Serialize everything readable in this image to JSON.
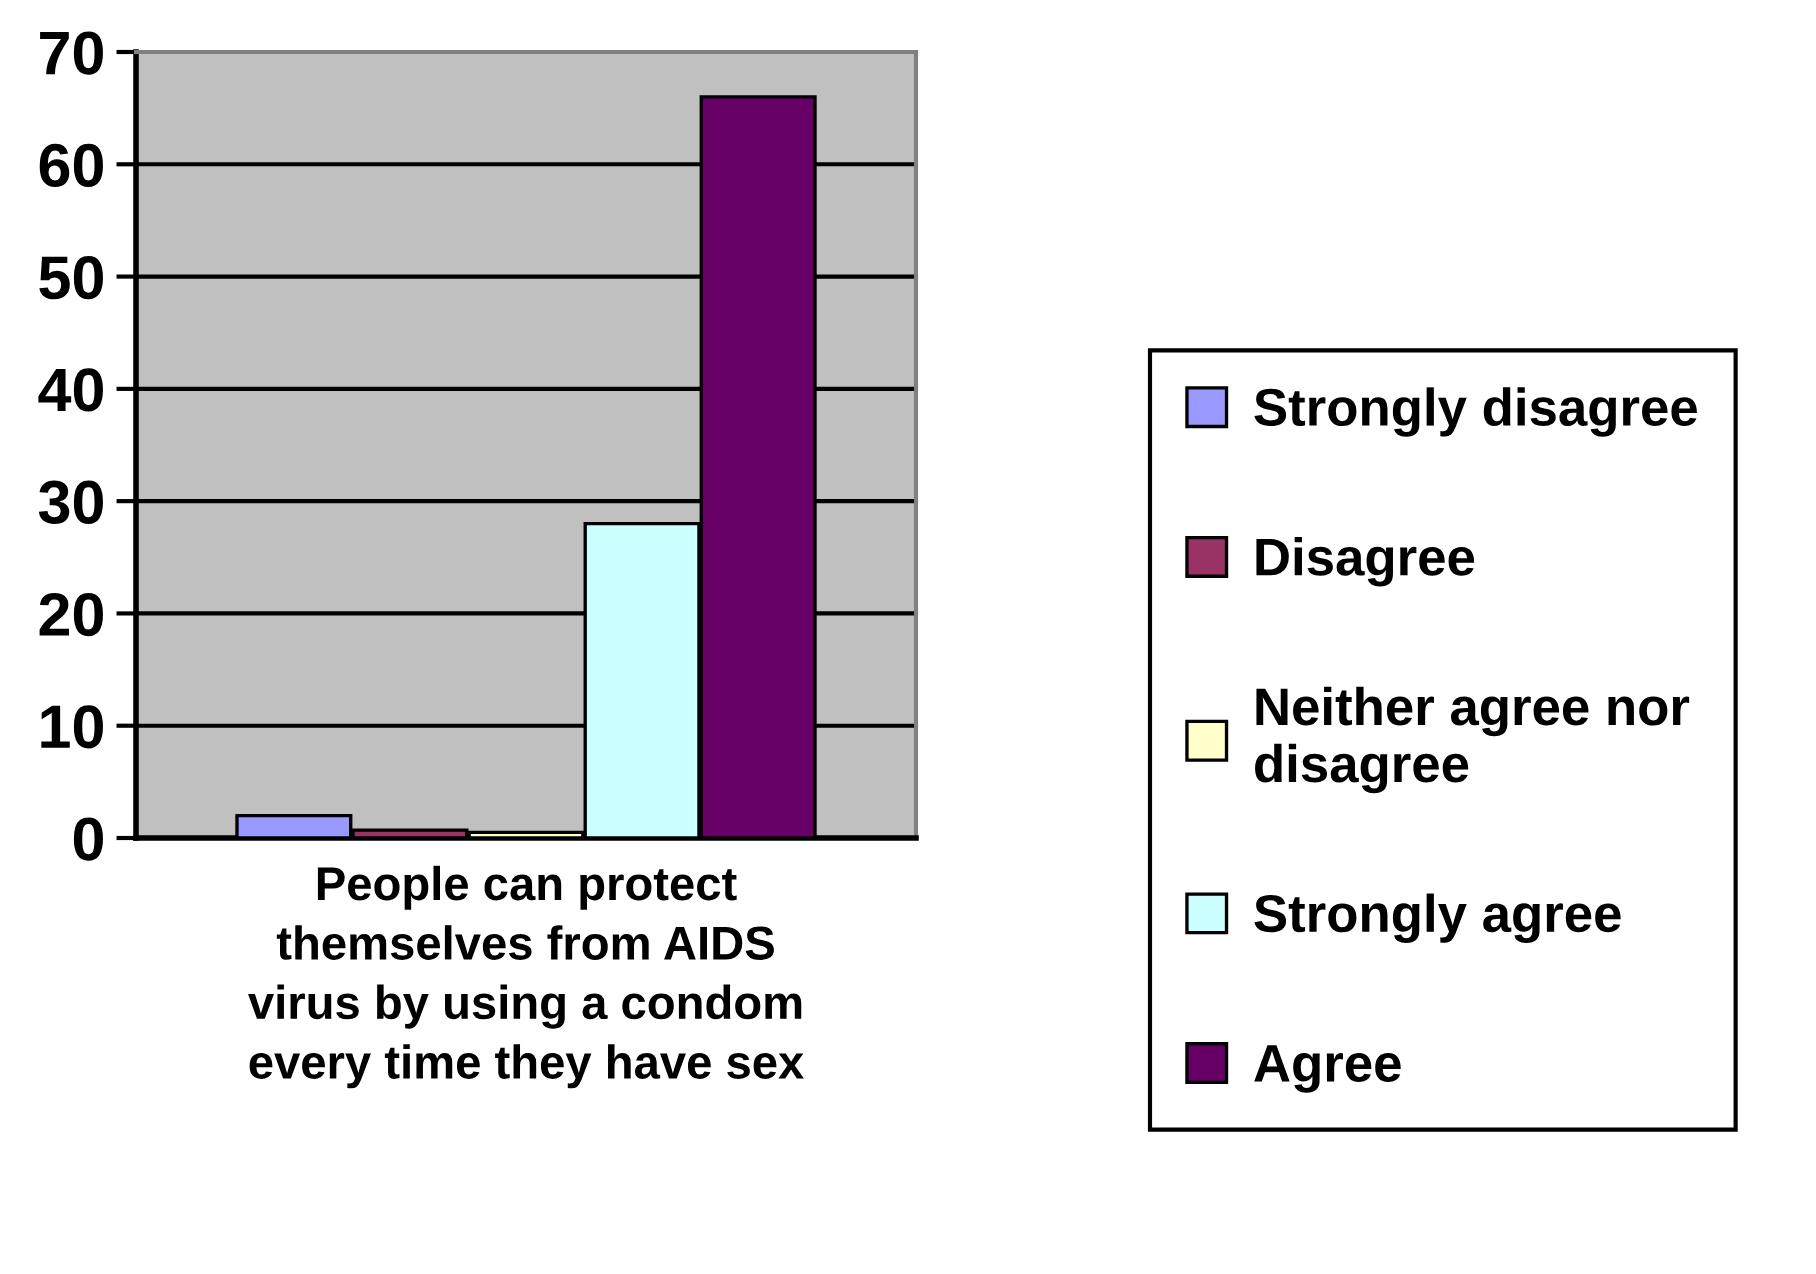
{
  "chart_data": {
    "type": "bar",
    "stacked": true,
    "xlabel": "People can protect themselves from AIDS virus by using a condom every time they have sex",
    "categories": [
      null,
      null,
      null,
      null,
      null
    ],
    "series": [
      {
        "name": "Strongly disagree",
        "color": "#9999ff",
        "values": [
          2,
          null,
          null,
          null,
          null
        ]
      },
      {
        "name": "Disagree",
        "color": "#993366",
        "values": [
          null,
          0.7,
          null,
          null,
          null
        ]
      },
      {
        "name": "Neither agree nor disagree",
        "color": "#ffffcc",
        "values": [
          null,
          null,
          0.5,
          null,
          null
        ]
      },
      {
        "name": "Strongly agree",
        "color": "#ccffff",
        "values": [
          null,
          null,
          null,
          28,
          null
        ]
      },
      {
        "name": "Agree",
        "color": "#660066",
        "values": [
          null,
          null,
          null,
          null,
          66
        ]
      }
    ],
    "ylim": [
      0,
      70
    ],
    "yticks": [
      0,
      10,
      20,
      30,
      40,
      50,
      60,
      70
    ],
    "grid": "y",
    "legend": "right"
  }
}
